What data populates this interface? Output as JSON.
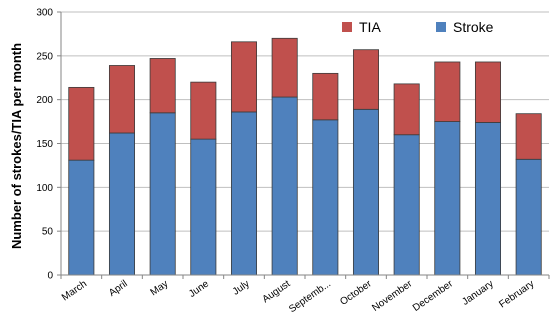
{
  "chart_data": {
    "type": "bar",
    "stacked": true,
    "title": "",
    "xlabel": "",
    "ylabel": "Number of strokes/TIA per month",
    "ylim": [
      0,
      300
    ],
    "yticks": [
      0,
      50,
      100,
      150,
      200,
      250,
      300
    ],
    "grid": true,
    "legend_position": "top-right",
    "categories": [
      "March",
      "April",
      "May",
      "June",
      "July",
      "August",
      "Septemb...",
      "October",
      "November",
      "December",
      "January",
      "February"
    ],
    "series": [
      {
        "name": "Stroke",
        "color": "#4F81BD",
        "values": [
          131,
          162,
          185,
          155,
          186,
          203,
          177,
          189,
          160,
          175,
          174,
          132
        ]
      },
      {
        "name": "TIA",
        "color": "#C0504D",
        "values": [
          83,
          77,
          62,
          65,
          80,
          67,
          53,
          68,
          58,
          68,
          69,
          52
        ]
      }
    ],
    "legend": [
      "TIA",
      "Stroke"
    ]
  }
}
